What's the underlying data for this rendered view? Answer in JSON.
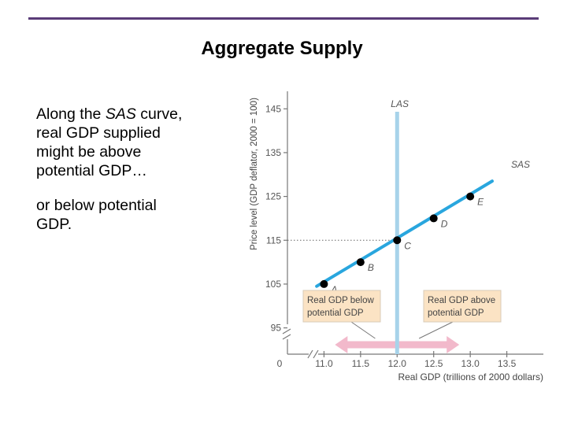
{
  "slide": {
    "title": "Aggregate Supply",
    "text1_pre": "Along the ",
    "text1_italic": "SAS",
    "text1_post": " curve, real GDP supplied might be above potential GDP…",
    "text2": "or below potential GDP."
  },
  "colors": {
    "rule": "#5a3c78",
    "sas_line": "#29a6de",
    "las_line": "#a7d3ea",
    "callout_fill": "#fbe3c4",
    "arrow": "#f2b9cb",
    "point": "#000000",
    "axis_text": "#555555"
  },
  "chart_data": {
    "type": "line",
    "title": "",
    "xlabel": "Real GDP (trillions of 2000 dollars)",
    "ylabel": "Price level (GDP deflator, 2000 = 100)",
    "x_ticks": [
      11.0,
      11.5,
      12.0,
      12.5,
      13.0,
      13.5
    ],
    "x_tick_labels": [
      "11.0",
      "11.5",
      "12.0",
      "12.5",
      "13.0",
      "13.5"
    ],
    "y_ticks": [
      95,
      105,
      115,
      125,
      135,
      145
    ],
    "y_tick_labels": [
      "95",
      "105",
      "115",
      "125",
      "135",
      "145"
    ],
    "origin_label": "0",
    "xlim": [
      10.5,
      14.0
    ],
    "ylim": [
      89,
      149
    ],
    "axis_break": true,
    "series": [
      {
        "name": "SAS",
        "kind": "line",
        "x": [
          10.9,
          13.3
        ],
        "y": [
          104.5,
          128.5
        ]
      },
      {
        "name": "LAS",
        "kind": "vertical",
        "x": 12.0
      }
    ],
    "points": [
      {
        "label": "A",
        "x": 11.0,
        "y": 105
      },
      {
        "label": "B",
        "x": 11.5,
        "y": 110
      },
      {
        "label": "C",
        "x": 12.0,
        "y": 115
      },
      {
        "label": "D",
        "x": 12.5,
        "y": 120
      },
      {
        "label": "E",
        "x": 13.0,
        "y": 125
      }
    ],
    "guide_line": {
      "y": 115,
      "x_to": 12.0,
      "style": "dotted"
    },
    "annotations": [
      {
        "text": [
          "Real GDP below",
          "potential GDP"
        ],
        "points_to_x": 11.7
      },
      {
        "text": [
          "Real GDP above",
          "potential GDP"
        ],
        "points_to_x": 12.3
      }
    ],
    "range_arrow": {
      "x_from": 11.15,
      "x_to": 12.85,
      "center": 12.0
    }
  }
}
